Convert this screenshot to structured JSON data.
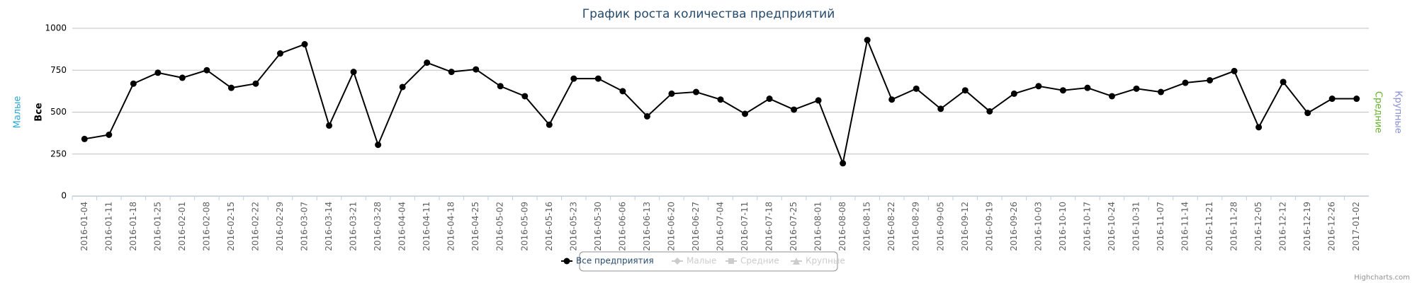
{
  "chart_data": {
    "type": "line",
    "title": "График роста количества предприятий",
    "axis_titles": [
      {
        "text": "Малые",
        "color": "#2aa9d6",
        "side": "left"
      },
      {
        "text": "Все",
        "color": "#000000",
        "side": "left"
      },
      {
        "text": "Средние",
        "color": "#66b32e",
        "side": "right"
      },
      {
        "text": "Крупные",
        "color": "#8a8fd8",
        "side": "right"
      }
    ],
    "categories": [
      "2016-01-04",
      "2016-01-11",
      "2016-01-18",
      "2016-01-25",
      "2016-02-01",
      "2016-02-08",
      "2016-02-15",
      "2016-02-22",
      "2016-02-29",
      "2016-03-07",
      "2016-03-14",
      "2016-03-21",
      "2016-03-28",
      "2016-04-04",
      "2016-04-11",
      "2016-04-18",
      "2016-04-25",
      "2016-05-02",
      "2016-05-09",
      "2016-05-16",
      "2016-05-23",
      "2016-05-30",
      "2016-06-06",
      "2016-06-13",
      "2016-06-20",
      "2016-06-27",
      "2016-07-04",
      "2016-07-11",
      "2016-07-18",
      "2016-07-25",
      "2016-08-01",
      "2016-08-08",
      "2016-08-15",
      "2016-08-22",
      "2016-08-29",
      "2016-09-05",
      "2016-09-12",
      "2016-09-19",
      "2016-09-26",
      "2016-10-03",
      "2016-10-10",
      "2016-10-17",
      "2016-10-24",
      "2016-10-31",
      "2016-11-07",
      "2016-11-14",
      "2016-11-21",
      "2016-11-28",
      "2016-12-05",
      "2016-12-12",
      "2016-12-19",
      "2016-12-26",
      "2017-01-02"
    ],
    "series": [
      {
        "name": "Все предприятия",
        "color": "#000000",
        "marker": "circle",
        "visible": true,
        "values": [
          340,
          365,
          670,
          735,
          705,
          750,
          645,
          670,
          850,
          905,
          420,
          740,
          305,
          650,
          795,
          740,
          755,
          655,
          595,
          425,
          700,
          700,
          625,
          475,
          610,
          620,
          575,
          490,
          580,
          515,
          570,
          195,
          930,
          575,
          640,
          520,
          630,
          505,
          610,
          655,
          630,
          645,
          595,
          640,
          620,
          675,
          690,
          745,
          410,
          680,
          495,
          580,
          580
        ]
      },
      {
        "name": "Малые",
        "color": "#2aa9d6",
        "marker": "diamond",
        "visible": false
      },
      {
        "name": "Средние",
        "color": "#66b32e",
        "marker": "square",
        "visible": false
      },
      {
        "name": "Крупные",
        "color": "#8a8fd8",
        "marker": "triangle",
        "visible": false
      }
    ],
    "ylim": [
      0,
      1000
    ],
    "yticks": [
      0,
      250,
      500,
      750,
      1000
    ],
    "grid": true,
    "credits": "Highcharts.com"
  }
}
